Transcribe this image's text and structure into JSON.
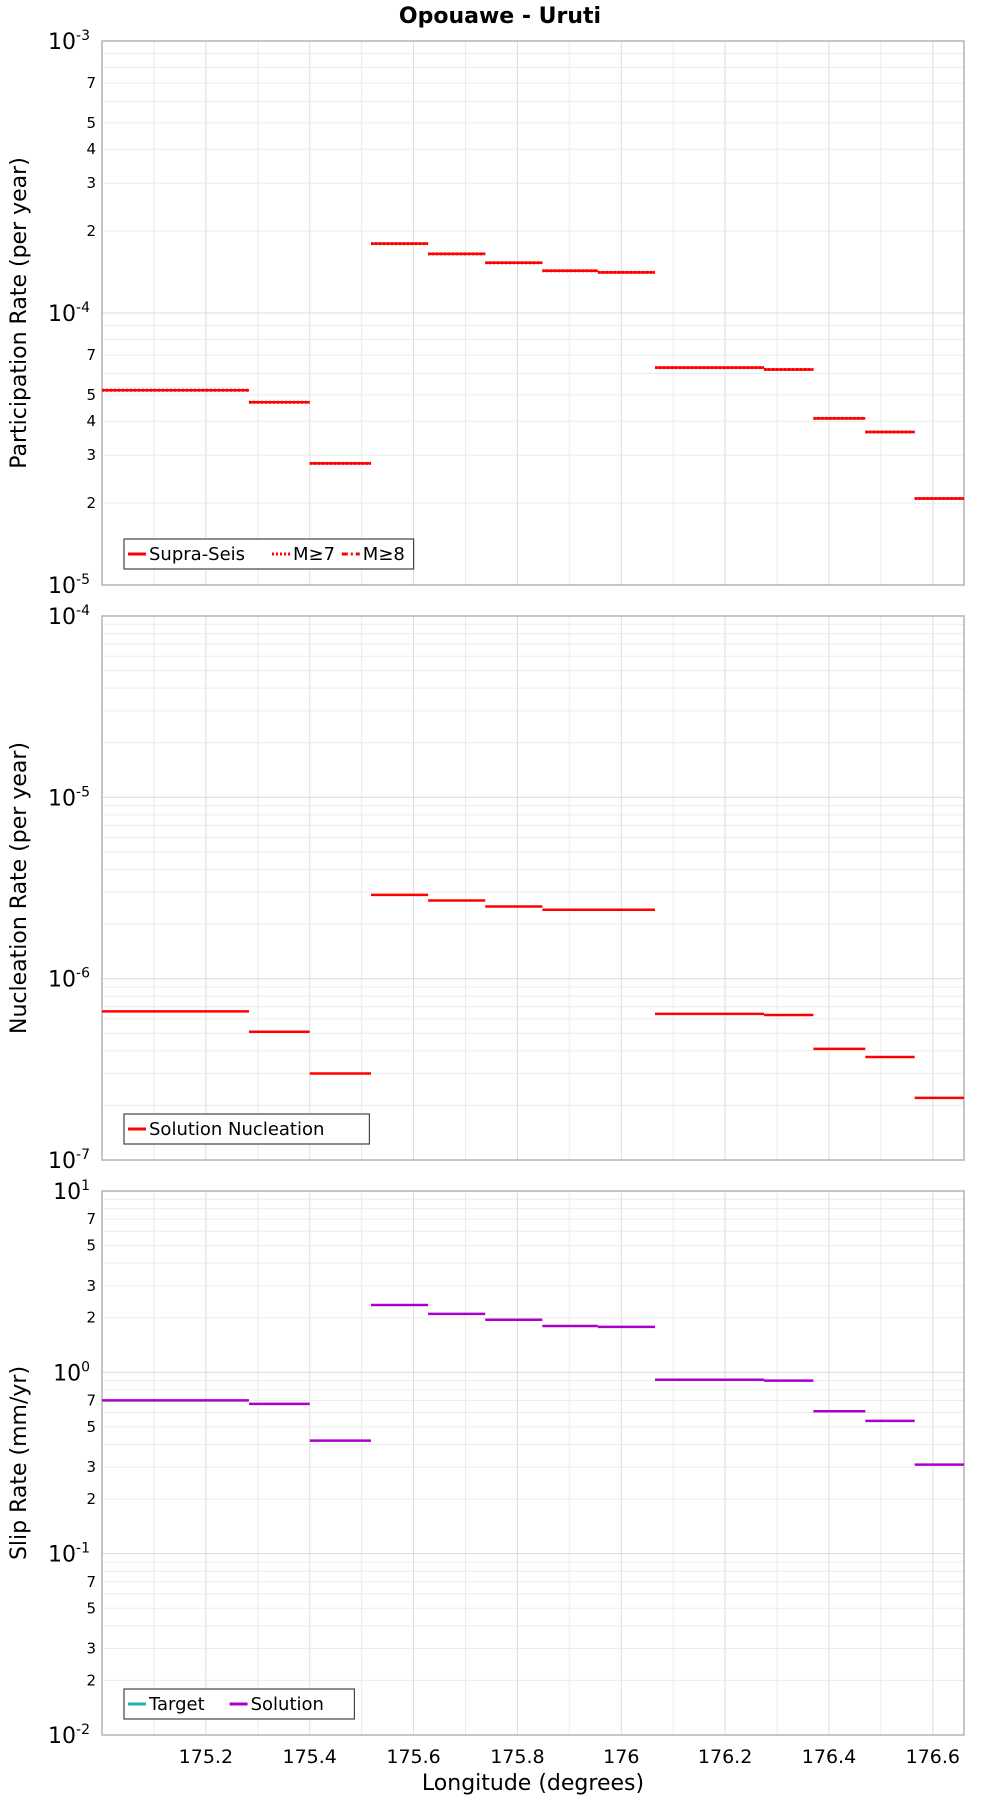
{
  "chart_data": [
    {
      "type": "line",
      "title": "Opouawe - Uruti",
      "xlabel": "Longitude (degrees)",
      "ylabel": "Participation Rate (per year)",
      "yscale": "log",
      "ylim": [
        1e-05,
        0.001
      ],
      "xlim": [
        175.0,
        176.66
      ],
      "xticks": [
        "175.2",
        "175.4",
        "175.6",
        "175.8",
        "176",
        "176.2",
        "176.4",
        "176.6"
      ],
      "legend": {
        "position": "bottom-left",
        "entries": [
          "Supra-Seis",
          "M≥7",
          "M≥8"
        ]
      },
      "series": [
        {
          "name": "Supra-Seis",
          "color": "#ff0000",
          "style": "solid",
          "segments": [
            [
              175.0,
              175.283,
              5.2e-05
            ],
            [
              175.283,
              175.4,
              4.7e-05
            ],
            [
              175.4,
              175.518,
              2.8e-05
            ],
            [
              175.518,
              175.628,
              0.00018
            ],
            [
              175.628,
              175.738,
              0.000165
            ],
            [
              175.738,
              175.848,
              0.000153
            ],
            [
              175.848,
              175.955,
              0.000143
            ],
            [
              175.955,
              176.065,
              0.000141
            ],
            [
              176.065,
              176.275,
              6.3e-05
            ],
            [
              176.275,
              176.37,
              6.2e-05
            ],
            [
              176.37,
              176.47,
              4.1e-05
            ],
            [
              176.47,
              176.565,
              3.65e-05
            ],
            [
              176.565,
              176.66,
              2.08e-05
            ]
          ]
        },
        {
          "name": "M≥7",
          "color": "#ff0000",
          "style": "dotted",
          "segments": [
            [
              175.0,
              175.283,
              5.2e-05
            ],
            [
              175.283,
              175.4,
              4.7e-05
            ],
            [
              175.4,
              175.518,
              2.8e-05
            ],
            [
              175.518,
              175.628,
              0.00018
            ],
            [
              175.628,
              175.738,
              0.000165
            ],
            [
              175.738,
              175.848,
              0.000153
            ],
            [
              175.848,
              175.955,
              0.000143
            ],
            [
              175.955,
              176.065,
              0.000141
            ],
            [
              176.065,
              176.275,
              6.3e-05
            ],
            [
              176.275,
              176.37,
              6.2e-05
            ],
            [
              176.37,
              176.47,
              4.1e-05
            ],
            [
              176.47,
              176.565,
              3.65e-05
            ],
            [
              176.565,
              176.66,
              2.08e-05
            ]
          ]
        },
        {
          "name": "M≥8",
          "color": "#ff0000",
          "style": "dashdot",
          "segments": []
        }
      ]
    },
    {
      "type": "line",
      "title": "",
      "xlabel": "Longitude (degrees)",
      "ylabel": "Nucleation Rate (per year)",
      "yscale": "log",
      "ylim": [
        1e-07,
        0.0001
      ],
      "xlim": [
        175.0,
        176.66
      ],
      "legend": {
        "position": "bottom-left",
        "entries": [
          "Solution Nucleation"
        ]
      },
      "series": [
        {
          "name": "Solution Nucleation",
          "color": "#ff0000",
          "style": "solid",
          "segments": [
            [
              175.0,
              175.283,
              6.6e-07
            ],
            [
              175.283,
              175.4,
              5.1e-07
            ],
            [
              175.4,
              175.518,
              3e-07
            ],
            [
              175.518,
              175.628,
              2.9e-06
            ],
            [
              175.628,
              175.738,
              2.7e-06
            ],
            [
              175.738,
              175.848,
              2.5e-06
            ],
            [
              175.848,
              175.955,
              2.4e-06
            ],
            [
              175.955,
              176.065,
              2.4e-06
            ],
            [
              176.065,
              176.275,
              6.4e-07
            ],
            [
              176.275,
              176.37,
              6.3e-07
            ],
            [
              176.37,
              176.47,
              4.1e-07
            ],
            [
              176.47,
              176.565,
              3.7e-07
            ],
            [
              176.565,
              176.66,
              2.2e-07
            ]
          ]
        }
      ]
    },
    {
      "type": "line",
      "title": "",
      "xlabel": "Longitude (degrees)",
      "ylabel": "Slip Rate (mm/yr)",
      "yscale": "log",
      "ylim": [
        0.01,
        10
      ],
      "xlim": [
        175.0,
        176.66
      ],
      "xticks": [
        "175.2",
        "175.4",
        "175.6",
        "175.8",
        "176",
        "176.2",
        "176.4",
        "176.6"
      ],
      "legend": {
        "position": "bottom-left",
        "entries": [
          "Target",
          "Solution"
        ]
      },
      "series": [
        {
          "name": "Target",
          "color": "#20b2aa",
          "style": "solid",
          "segments": []
        },
        {
          "name": "Solution",
          "color": "#aa00cc",
          "style": "solid",
          "segments": [
            [
              175.0,
              175.283,
              0.7
            ],
            [
              175.283,
              175.4,
              0.67
            ],
            [
              175.4,
              175.518,
              0.42
            ],
            [
              175.518,
              175.628,
              2.35
            ],
            [
              175.628,
              175.738,
              2.1
            ],
            [
              175.738,
              175.848,
              1.95
            ],
            [
              175.848,
              175.955,
              1.8
            ],
            [
              175.955,
              176.065,
              1.78
            ],
            [
              176.065,
              176.275,
              0.91
            ],
            [
              176.275,
              176.37,
              0.9
            ],
            [
              176.37,
              176.47,
              0.61
            ],
            [
              176.47,
              176.565,
              0.54
            ],
            [
              176.565,
              176.66,
              0.31
            ]
          ]
        }
      ]
    }
  ]
}
